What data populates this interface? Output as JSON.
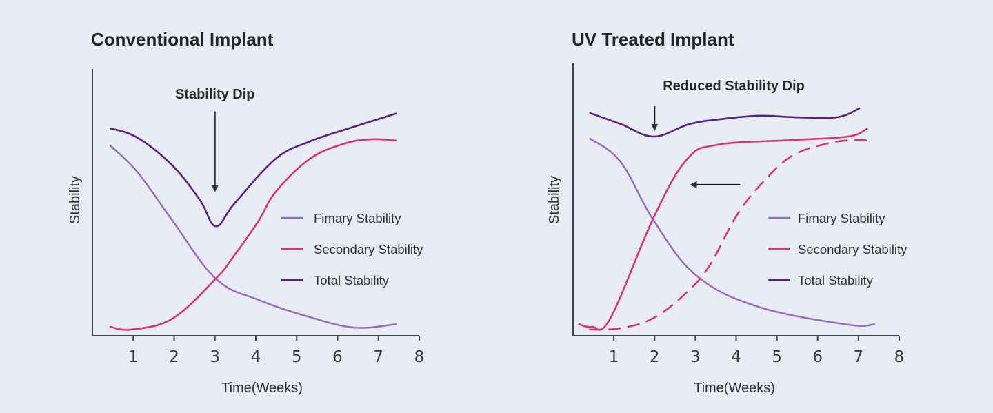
{
  "colors": {
    "background": "#e8ecf4",
    "primary": "#9b6bbd",
    "secondary": "#e0326f",
    "total": "#5a1f8a",
    "axis": "#444444",
    "arrow": "#333333"
  },
  "chart_data": [
    {
      "type": "line",
      "title": "Conventional Implant",
      "xlabel": "Time(Weeks)",
      "ylabel": "Stability",
      "xlim": [
        0,
        8
      ],
      "ylim": [
        0,
        10
      ],
      "x_ticks": [
        "1",
        "2",
        "3",
        "4",
        "5",
        "6",
        "7",
        "8"
      ],
      "grid": false,
      "legend_position": "center-right",
      "annotation": {
        "text": "Stability Dip",
        "x": 3.0,
        "y_from": 8.4,
        "y_to": 5.5
      },
      "series": [
        {
          "name": "Fimary Stability",
          "key": "primary",
          "dashed": false,
          "points": [
            [
              0.44,
              7.12
            ],
            [
              1.11,
              6.11
            ],
            [
              1.96,
              4.3
            ],
            [
              3.02,
              2.12
            ],
            [
              4.07,
              1.32
            ],
            [
              5.33,
              0.67
            ],
            [
              6.43,
              0.28
            ],
            [
              7.43,
              0.41
            ]
          ]
        },
        {
          "name": "Secondary Stability",
          "key": "secondary",
          "dashed": false,
          "points": [
            [
              0.44,
              0.31
            ],
            [
              0.95,
              0.21
            ],
            [
              1.96,
              0.62
            ],
            [
              3.02,
              2.12
            ],
            [
              3.48,
              3.01
            ],
            [
              4.07,
              4.3
            ],
            [
              4.49,
              5.39
            ],
            [
              5.33,
              6.63
            ],
            [
              6.18,
              7.2
            ],
            [
              6.85,
              7.36
            ],
            [
              7.43,
              7.31
            ]
          ]
        },
        {
          "name": "Total Stability",
          "key": "total",
          "dashed": false,
          "points": [
            [
              0.44,
              7.77
            ],
            [
              1.11,
              7.41
            ],
            [
              1.96,
              6.37
            ],
            [
              2.63,
              5.08
            ],
            [
              3.02,
              4.09
            ],
            [
              3.48,
              4.95
            ],
            [
              4.49,
              6.63
            ],
            [
              5.33,
              7.28
            ],
            [
              6.18,
              7.72
            ],
            [
              7.43,
              8.32
            ]
          ]
        }
      ]
    },
    {
      "type": "line",
      "title": "UV Treated Implant",
      "xlabel": "Time(Weeks)",
      "ylabel": "Stability",
      "xlim": [
        0,
        8
      ],
      "ylim": [
        0,
        10
      ],
      "x_ticks": [
        "1",
        "2",
        "3",
        "4",
        "5",
        "6",
        "7",
        "8"
      ],
      "grid": false,
      "legend_position": "center-right",
      "annotation": {
        "text": "Reduced Stability Dip",
        "x": 2.0,
        "y_from": 8.6,
        "y_to": 7.8
      },
      "shift_arrow": {
        "x_from": 4.1,
        "x_to": 2.95,
        "y": 5.65
      },
      "series": [
        {
          "name": "Fimary Stability",
          "key": "primary",
          "dashed": false,
          "points": [
            [
              0.42,
              7.38
            ],
            [
              1.17,
              6.5
            ],
            [
              1.98,
              4.3
            ],
            [
              3.03,
              2.23
            ],
            [
              4.55,
              1.06
            ],
            [
              6.75,
              0.39
            ],
            [
              7.39,
              0.41
            ]
          ]
        },
        {
          "name": "Secondary Stability",
          "key": "secondary",
          "dashed": false,
          "points": [
            [
              0.15,
              0.41
            ],
            [
              0.46,
              0.31
            ],
            [
              0.91,
              0.62
            ],
            [
              1.98,
              4.43
            ],
            [
              2.78,
              6.58
            ],
            [
              3.54,
              7.15
            ],
            [
              5.4,
              7.33
            ],
            [
              6.75,
              7.46
            ],
            [
              7.21,
              7.75
            ]
          ]
        },
        {
          "name": "Secondary Stability (conventional reference)",
          "key": "secondary",
          "dashed": true,
          "in_legend": false,
          "points": [
            [
              0.41,
              0.21
            ],
            [
              1.17,
              0.26
            ],
            [
              2.01,
              0.67
            ],
            [
              2.86,
              1.71
            ],
            [
              3.37,
              2.67
            ],
            [
              4.04,
              4.56
            ],
            [
              4.72,
              5.85
            ],
            [
              5.4,
              6.76
            ],
            [
              6.24,
              7.2
            ],
            [
              6.92,
              7.33
            ],
            [
              7.39,
              7.28
            ]
          ]
        },
        {
          "name": "Total Stability",
          "key": "total",
          "dashed": false,
          "points": [
            [
              0.42,
              8.34
            ],
            [
              1.17,
              7.93
            ],
            [
              1.98,
              7.46
            ],
            [
              2.86,
              7.93
            ],
            [
              3.71,
              8.13
            ],
            [
              4.55,
              8.24
            ],
            [
              5.4,
              8.19
            ],
            [
              6.24,
              8.16
            ],
            [
              6.67,
              8.26
            ],
            [
              7.02,
              8.52
            ]
          ]
        }
      ]
    }
  ]
}
